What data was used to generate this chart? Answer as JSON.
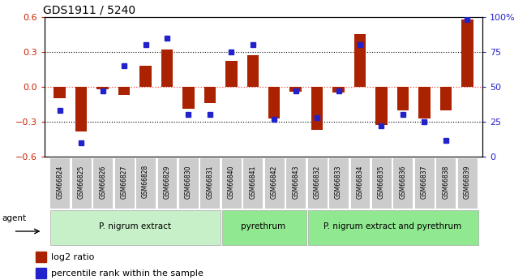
{
  "title": "GDS1911 / 5240",
  "samples": [
    "GSM66824",
    "GSM66825",
    "GSM66826",
    "GSM66827",
    "GSM66828",
    "GSM66829",
    "GSM66830",
    "GSM66831",
    "GSM66840",
    "GSM66841",
    "GSM66842",
    "GSM66843",
    "GSM66832",
    "GSM66833",
    "GSM66834",
    "GSM66835",
    "GSM66836",
    "GSM66837",
    "GSM66838",
    "GSM66839"
  ],
  "log2_ratio": [
    -0.1,
    -0.38,
    -0.02,
    -0.07,
    0.18,
    0.32,
    -0.19,
    -0.14,
    0.22,
    0.27,
    -0.27,
    -0.04,
    -0.37,
    -0.05,
    0.45,
    -0.33,
    -0.2,
    -0.27,
    -0.2,
    0.58
  ],
  "percentile": [
    33,
    10,
    47,
    65,
    80,
    85,
    30,
    30,
    75,
    80,
    27,
    47,
    28,
    47,
    80,
    22,
    30,
    25,
    12,
    98
  ],
  "groups": [
    {
      "label": "P. nigrum extract",
      "start": 0,
      "end": 8,
      "color": "#c8f0c8"
    },
    {
      "label": "pyrethrum",
      "start": 8,
      "end": 12,
      "color": "#90e890"
    },
    {
      "label": "P. nigrum extract and pyrethrum",
      "start": 12,
      "end": 20,
      "color": "#90e890"
    }
  ],
  "bar_color": "#aa2200",
  "dot_color": "#2222cc",
  "ylim": [
    -0.6,
    0.6
  ],
  "y2lim": [
    0,
    100
  ],
  "yticks_left": [
    -0.6,
    -0.3,
    0.0,
    0.3,
    0.6
  ],
  "yticks_right": [
    0,
    25,
    50,
    75,
    100
  ],
  "agent_label": "agent"
}
